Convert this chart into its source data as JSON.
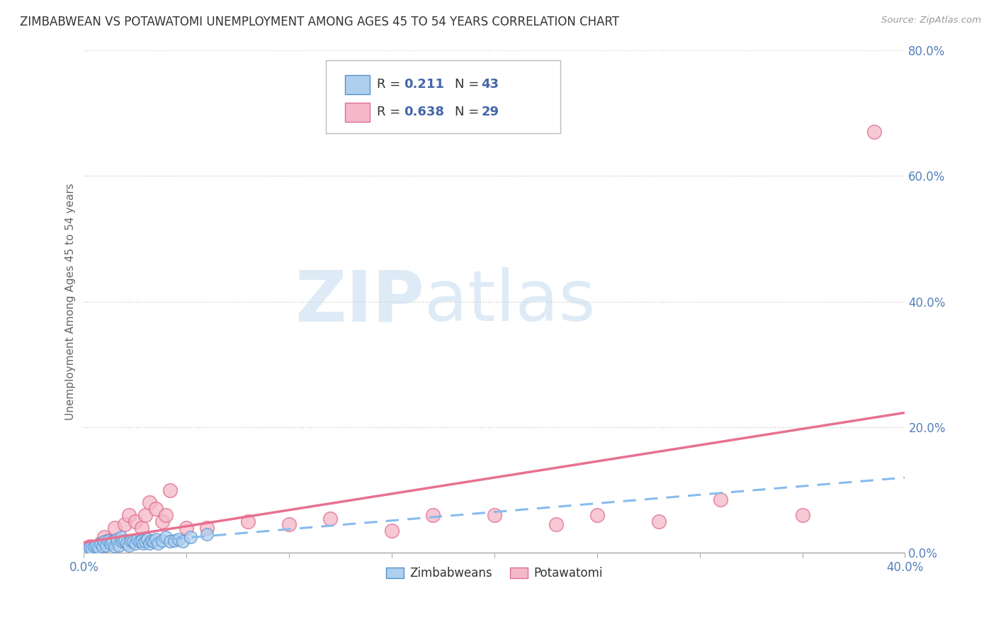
{
  "title": "ZIMBABWEAN VS POTAWATOMI UNEMPLOYMENT AMONG AGES 45 TO 54 YEARS CORRELATION CHART",
  "source": "Source: ZipAtlas.com",
  "ylabel": "Unemployment Among Ages 45 to 54 years",
  "xlim": [
    0.0,
    0.4
  ],
  "ylim": [
    0.0,
    0.8
  ],
  "yticks": [
    0.0,
    0.2,
    0.4,
    0.6,
    0.8
  ],
  "ytick_labels": [
    "0.0%",
    "20.0%",
    "40.0%",
    "60.0%",
    "80.0%"
  ],
  "xtick_labels": [
    "0.0%",
    "",
    "",
    "",
    "",
    "",
    "",
    "",
    "40.0%"
  ],
  "grid_color": "#c8c8c8",
  "background_color": "#ffffff",
  "zimbabwean_color": "#aecfee",
  "potawatomi_color": "#f5b8c8",
  "zimbabwean_edge_color": "#5590cc",
  "potawatomi_edge_color": "#e07090",
  "trend_zimbabwean_color": "#88bbee",
  "trend_potawatomi_color": "#e87090",
  "R_zimbabwean": 0.211,
  "N_zimbabwean": 43,
  "R_potawatomi": 0.638,
  "N_potawatomi": 29,
  "legend_label_zimbabwean": "Zimbabweans",
  "legend_label_potawatomi": "Potawatomi",
  "watermark_zip": "ZIP",
  "watermark_atlas": "atlas",
  "title_fontsize": 12,
  "axis_label_fontsize": 11,
  "tick_fontsize": 12,
  "tick_color": "#5580bb",
  "legend_text_color": "#4466aa",
  "zimbabwean_x": [
    0.002,
    0.003,
    0.004,
    0.005,
    0.006,
    0.007,
    0.008,
    0.009,
    0.01,
    0.011,
    0.012,
    0.013,
    0.014,
    0.015,
    0.016,
    0.017,
    0.018,
    0.019,
    0.02,
    0.021,
    0.022,
    0.023,
    0.024,
    0.025,
    0.026,
    0.027,
    0.028,
    0.029,
    0.03,
    0.031,
    0.032,
    0.033,
    0.034,
    0.035,
    0.036,
    0.038,
    0.04,
    0.042,
    0.044,
    0.046,
    0.048,
    0.052,
    0.06
  ],
  "zimbabwean_y": [
    0.005,
    0.008,
    0.006,
    0.01,
    0.012,
    0.008,
    0.015,
    0.01,
    0.018,
    0.012,
    0.02,
    0.015,
    0.018,
    0.01,
    0.022,
    0.012,
    0.025,
    0.018,
    0.02,
    0.015,
    0.012,
    0.02,
    0.018,
    0.015,
    0.022,
    0.018,
    0.02,
    0.015,
    0.018,
    0.022,
    0.015,
    0.02,
    0.018,
    0.022,
    0.015,
    0.02,
    0.025,
    0.018,
    0.02,
    0.022,
    0.018,
    0.025,
    0.03
  ],
  "potawatomi_x": [
    0.003,
    0.008,
    0.01,
    0.012,
    0.015,
    0.02,
    0.022,
    0.025,
    0.028,
    0.03,
    0.032,
    0.035,
    0.038,
    0.04,
    0.042,
    0.05,
    0.06,
    0.08,
    0.1,
    0.12,
    0.15,
    0.17,
    0.2,
    0.23,
    0.25,
    0.28,
    0.31,
    0.35,
    0.385
  ],
  "potawatomi_y": [
    0.01,
    0.015,
    0.025,
    0.02,
    0.04,
    0.045,
    0.06,
    0.05,
    0.04,
    0.06,
    0.08,
    0.07,
    0.05,
    0.06,
    0.1,
    0.04,
    0.04,
    0.05,
    0.045,
    0.055,
    0.035,
    0.06,
    0.06,
    0.045,
    0.06,
    0.05,
    0.085,
    0.06,
    0.67
  ]
}
